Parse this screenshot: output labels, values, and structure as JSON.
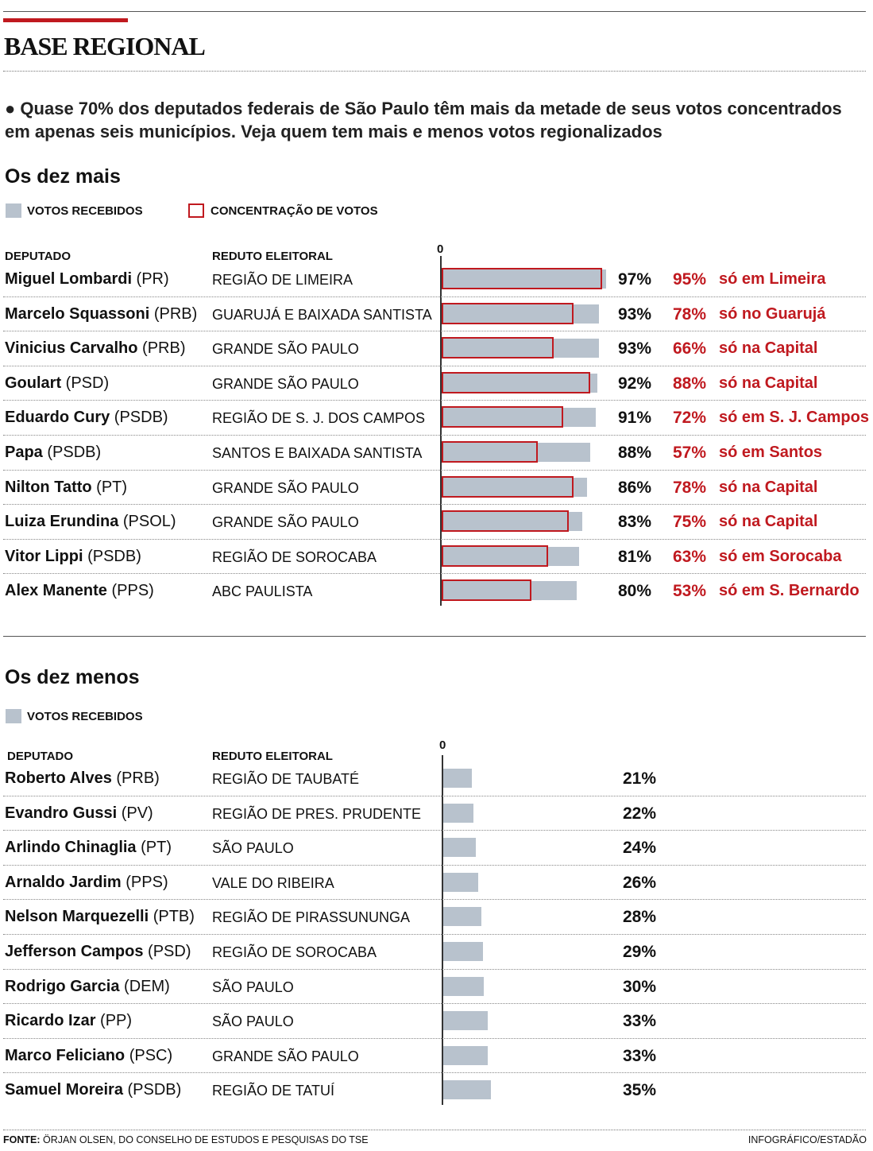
{
  "title": "BASE REGIONAL",
  "intro": "Quase 70% dos deputados federais de São Paulo têm mais da metade de seus votos concentrados em apenas seis municípios. Veja quem tem mais e menos votos regionalizados",
  "colors": {
    "bar": "#b8c2cd",
    "accent": "#c0191f"
  },
  "top": {
    "heading": "Os dez mais",
    "legend_votes": "VOTOS RECEBIDOS",
    "legend_conc": "CONCENTRAÇÃO DE VOTOS",
    "col_deputado": "DEPUTADO",
    "col_reduto": "REDUTO ELEITORAL",
    "zero": "0"
  },
  "bottom": {
    "heading": "Os dez menos",
    "legend_votes": "VOTOS RECEBIDOS",
    "col_deputado": "DEPUTADO",
    "col_reduto": "REDUTO ELEITORAL",
    "zero": "0"
  },
  "footer": {
    "source_label": "FONTE:",
    "source_text": "ÖRJAN OLSEN, DO CONSELHO DE ESTUDOS E PESQUISAS DO TSE",
    "credit": "INFOGRÁFICO/ESTADÃO"
  },
  "chart_data": [
    {
      "type": "bar",
      "title": "Os dez mais",
      "rows": [
        {
          "name": "Miguel Lombardi",
          "party": "(PR)",
          "reduto": "REGIÃO DE LIMEIRA",
          "votes": 97,
          "votes_label": "97%",
          "conc": 95,
          "conc_label": "95%",
          "conc_place": "só em Limeira"
        },
        {
          "name": "Marcelo Squassoni",
          "party": "(PRB)",
          "reduto": "GUARUJÁ E BAIXADA SANTISTA",
          "votes": 93,
          "votes_label": "93%",
          "conc": 78,
          "conc_label": "78%",
          "conc_place": "só no Guarujá"
        },
        {
          "name": "Vinicius Carvalho",
          "party": "(PRB)",
          "reduto": "GRANDE SÃO PAULO",
          "votes": 93,
          "votes_label": "93%",
          "conc": 66,
          "conc_label": "66%",
          "conc_place": "só na Capital"
        },
        {
          "name": "Goulart",
          "party": "(PSD)",
          "reduto": "GRANDE SÃO PAULO",
          "votes": 92,
          "votes_label": "92%",
          "conc": 88,
          "conc_label": "88%",
          "conc_place": "só na Capital"
        },
        {
          "name": "Eduardo Cury",
          "party": "(PSDB)",
          "reduto": "REGIÃO DE S. J. DOS CAMPOS",
          "votes": 91,
          "votes_label": "91%",
          "conc": 72,
          "conc_label": "72%",
          "conc_place": "só em S. J. Campos"
        },
        {
          "name": "Papa",
          "party": "(PSDB)",
          "reduto": "SANTOS E BAIXADA SANTISTA",
          "votes": 88,
          "votes_label": "88%",
          "conc": 57,
          "conc_label": "57%",
          "conc_place": "só em Santos"
        },
        {
          "name": "Nilton Tatto",
          "party": "(PT)",
          "reduto": "GRANDE SÃO PAULO",
          "votes": 86,
          "votes_label": "86%",
          "conc": 78,
          "conc_label": "78%",
          "conc_place": "só na Capital"
        },
        {
          "name": "Luiza Erundina",
          "party": "(PSOL)",
          "reduto": "GRANDE SÃO PAULO",
          "votes": 83,
          "votes_label": "83%",
          "conc": 75,
          "conc_label": "75%",
          "conc_place": "só na Capital"
        },
        {
          "name": "Vitor Lippi",
          "party": "(PSDB)",
          "reduto": "REGIÃO DE SOROCABA",
          "votes": 81,
          "votes_label": "81%",
          "conc": 63,
          "conc_label": "63%",
          "conc_place": "só em Sorocaba"
        },
        {
          "name": "Alex Manente",
          "party": "(PPS)",
          "reduto": "ABC PAULISTA",
          "votes": 80,
          "votes_label": "80%",
          "conc": 53,
          "conc_label": "53%",
          "conc_place": "só em S. Bernardo"
        }
      ]
    },
    {
      "type": "bar",
      "title": "Os dez menos",
      "rows": [
        {
          "name": "Roberto Alves",
          "party": "(PRB)",
          "reduto": "REGIÃO DE TAUBATÉ",
          "votes": 21,
          "votes_label": "21%"
        },
        {
          "name": "Evandro Gussi",
          "party": "(PV)",
          "reduto": "REGIÃO DE PRES. PRUDENTE",
          "votes": 22,
          "votes_label": "22%"
        },
        {
          "name": "Arlindo Chinaglia",
          "party": "(PT)",
          "reduto": "SÃO PAULO",
          "votes": 24,
          "votes_label": "24%"
        },
        {
          "name": "Arnaldo Jardim",
          "party": "(PPS)",
          "reduto": "VALE DO RIBEIRA",
          "votes": 26,
          "votes_label": "26%"
        },
        {
          "name": "Nelson Marquezelli",
          "party": "(PTB)",
          "reduto": "REGIÃO DE PIRASSUNUNGA",
          "votes": 28,
          "votes_label": "28%"
        },
        {
          "name": "Jefferson Campos",
          "party": "(PSD)",
          "reduto": "REGIÃO DE SOROCABA",
          "votes": 29,
          "votes_label": "29%"
        },
        {
          "name": "Rodrigo Garcia",
          "party": "(DEM)",
          "reduto": "SÃO PAULO",
          "votes": 30,
          "votes_label": "30%"
        },
        {
          "name": "Ricardo Izar",
          "party": "(PP)",
          "reduto": "SÃO PAULO",
          "votes": 33,
          "votes_label": "33%"
        },
        {
          "name": "Marco Feliciano",
          "party": "(PSC)",
          "reduto": "GRANDE SÃO PAULO",
          "votes": 33,
          "votes_label": "33%"
        },
        {
          "name": "Samuel Moreira",
          "party": "(PSDB)",
          "reduto": "REGIÃO DE TATUÍ",
          "votes": 35,
          "votes_label": "35%"
        }
      ]
    }
  ]
}
